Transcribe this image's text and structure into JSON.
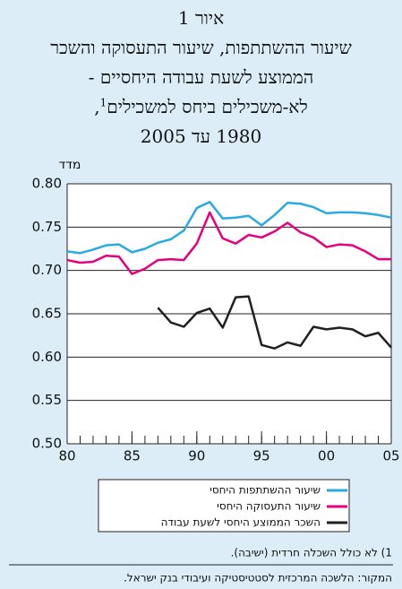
{
  "chart_data": {
    "type": "line",
    "title_lines": [
      "איור 1",
      "שיעור ההשתתפות, שיעור התעסוקה והשכר",
      "הממוצע לשעת עבודה היחסיים -"
    ],
    "title_line4": {
      "text": "לא-משכילים ביחס למשכילים",
      "sup": "1",
      "end": ","
    },
    "title_line5": "1980 עד 2005",
    "y_label": "מדד",
    "x": [
      1980,
      1981,
      1982,
      1983,
      1984,
      1985,
      1986,
      1987,
      1988,
      1989,
      1990,
      1991,
      1992,
      1993,
      1994,
      1995,
      1996,
      1997,
      1998,
      1999,
      2000,
      2001,
      2002,
      2003,
      2004,
      2005
    ],
    "series": [
      {
        "name": "שיעור ההשתתפות היחסי",
        "color": "#29abe2",
        "values": [
          0.722,
          0.72,
          0.724,
          0.729,
          0.73,
          0.721,
          0.725,
          0.732,
          0.736,
          0.746,
          0.772,
          0.779,
          0.76,
          0.761,
          0.763,
          0.752,
          0.764,
          0.778,
          0.777,
          0.773,
          0.766,
          0.767,
          0.767,
          0.766,
          0.764,
          0.761
        ]
      },
      {
        "name": "שיעור התעסוקה היחסי",
        "color": "#e6007e",
        "values": [
          0.712,
          0.709,
          0.71,
          0.717,
          0.716,
          0.696,
          0.702,
          0.712,
          0.713,
          0.712,
          0.731,
          0.767,
          0.737,
          0.731,
          0.741,
          0.738,
          0.745,
          0.755,
          0.744,
          0.738,
          0.727,
          0.73,
          0.729,
          0.722,
          0.713,
          0.713
        ]
      },
      {
        "name": "השכר הממוצע היחסי לשעת עבודה",
        "color": "#231f20",
        "values": [
          null,
          null,
          null,
          null,
          null,
          null,
          null,
          0.657,
          0.64,
          0.635,
          0.651,
          0.656,
          0.634,
          0.669,
          0.67,
          0.614,
          0.61,
          0.617,
          0.613,
          0.635,
          0.632,
          0.634,
          0.632,
          0.624,
          0.628,
          0.611
        ]
      }
    ],
    "xlim": [
      1980,
      2005
    ],
    "xticks": [
      {
        "value": 1980,
        "label": "80"
      },
      {
        "value": 1985,
        "label": "85"
      },
      {
        "value": 1990,
        "label": "90"
      },
      {
        "value": 1995,
        "label": "95"
      },
      {
        "value": 2000,
        "label": "00"
      },
      {
        "value": 2005,
        "label": "05"
      }
    ],
    "ylim": [
      0.5,
      0.8
    ],
    "yticks": [
      {
        "value": 0.5,
        "label": "0.50"
      },
      {
        "value": 0.55,
        "label": "0.55"
      },
      {
        "value": 0.6,
        "label": "0.60"
      },
      {
        "value": 0.65,
        "label": "0.65"
      },
      {
        "value": 0.7,
        "label": "0.70"
      },
      {
        "value": 0.75,
        "label": "0.75"
      },
      {
        "value": 0.8,
        "label": "0.80"
      }
    ],
    "grid": true,
    "footnote": "1) לא כולל השכלה חרדית (ישיבה).",
    "source": "המקור: הלשכה המרכזית לסטטיסטיקה ועיבודי בנק ישראל."
  }
}
